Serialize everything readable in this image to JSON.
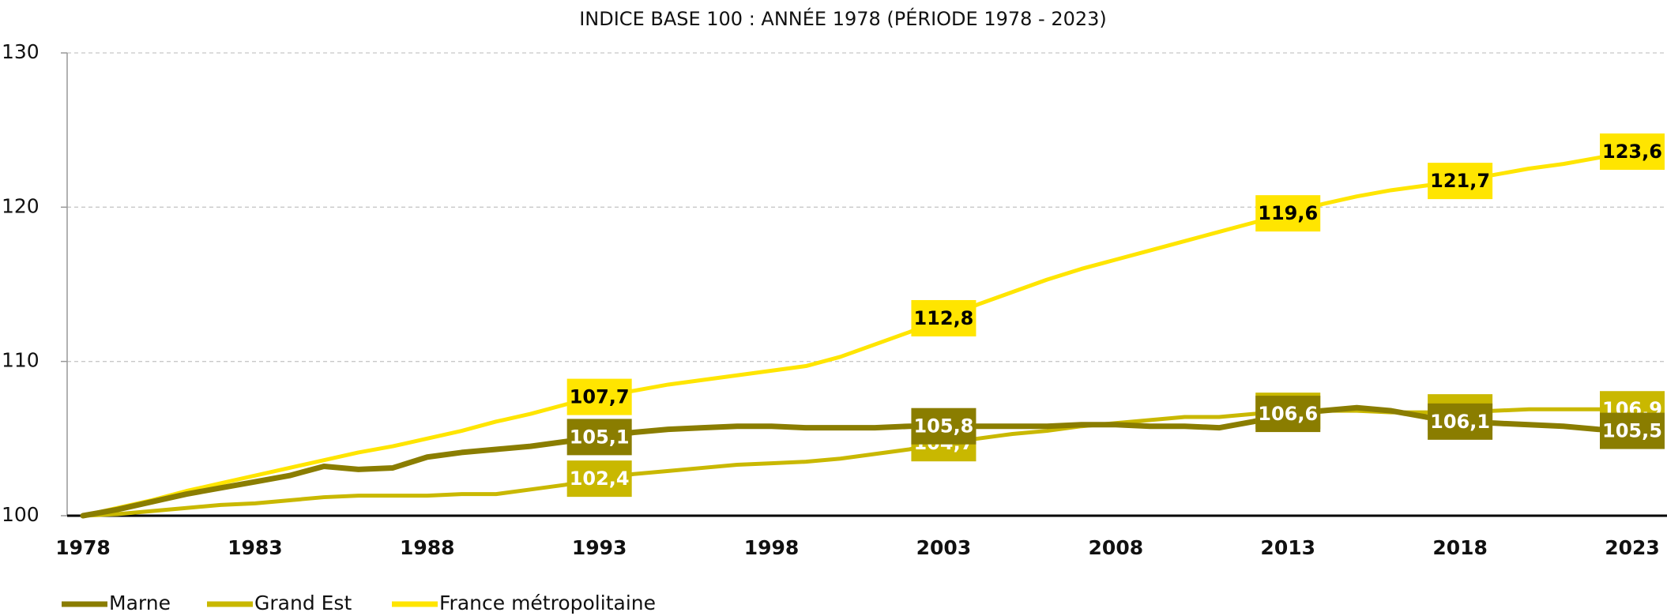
{
  "chart_data": {
    "type": "line",
    "title": "INDICE BASE 100 : ANNÉE 1978 (PÉRIODE 1978 - 2023)",
    "x": [
      1978,
      1979,
      1980,
      1981,
      1982,
      1983,
      1984,
      1985,
      1986,
      1987,
      1988,
      1989,
      1990,
      1991,
      1992,
      1993,
      1994,
      1995,
      1996,
      1997,
      1998,
      1999,
      2000,
      2001,
      2002,
      2003,
      2004,
      2005,
      2006,
      2007,
      2008,
      2009,
      2010,
      2011,
      2012,
      2013,
      2014,
      2015,
      2016,
      2017,
      2018,
      2019,
      2020,
      2021,
      2022,
      2023
    ],
    "xlim": [
      1978,
      2023
    ],
    "xticks": [
      1978,
      1983,
      1988,
      1993,
      1998,
      2003,
      2008,
      2013,
      2018,
      2023
    ],
    "ylim": [
      100,
      130
    ],
    "yticks": [
      100,
      110,
      120,
      130
    ],
    "grid": true,
    "legend": "bottom-left",
    "series": [
      {
        "name": "France métropolitaine",
        "color": "#ffe500",
        "label_text_color": "#000000",
        "values": [
          100,
          100.5,
          101.0,
          101.6,
          102.1,
          102.6,
          103.1,
          103.6,
          104.1,
          104.5,
          105.0,
          105.5,
          106.1,
          106.6,
          107.2,
          107.7,
          108.1,
          108.5,
          108.8,
          109.1,
          109.4,
          109.7,
          110.3,
          111.1,
          111.9,
          112.8,
          113.7,
          114.5,
          115.3,
          116.0,
          116.6,
          117.2,
          117.8,
          118.4,
          119.0,
          119.6,
          120.2,
          120.7,
          121.1,
          121.4,
          121.7,
          122.1,
          122.5,
          122.8,
          123.2,
          123.6
        ],
        "value_labels": [
          null,
          null,
          null,
          null,
          null,
          null,
          null,
          null,
          null,
          null,
          null,
          null,
          null,
          null,
          null,
          "107,7",
          null,
          null,
          null,
          null,
          null,
          null,
          null,
          null,
          null,
          "112,8",
          null,
          null,
          null,
          null,
          null,
          null,
          null,
          null,
          null,
          "119,6",
          null,
          null,
          null,
          null,
          "121,7",
          null,
          null,
          null,
          null,
          "123,6"
        ]
      },
      {
        "name": "Grand Est",
        "color": "#c9b800",
        "label_text_color": "#ffffff",
        "values": [
          100,
          100.1,
          100.3,
          100.5,
          100.7,
          100.8,
          101.0,
          101.2,
          101.3,
          101.3,
          101.3,
          101.4,
          101.4,
          101.7,
          102.0,
          102.4,
          102.7,
          102.9,
          103.1,
          103.3,
          103.4,
          103.5,
          103.7,
          104.0,
          104.3,
          104.7,
          105.0,
          105.3,
          105.5,
          105.8,
          106.0,
          106.2,
          106.4,
          106.4,
          106.6,
          106.8,
          106.8,
          106.8,
          106.7,
          106.7,
          106.7,
          106.8,
          106.9,
          106.9,
          106.9,
          106.9
        ],
        "value_labels": [
          null,
          null,
          null,
          null,
          null,
          null,
          null,
          null,
          null,
          null,
          null,
          null,
          null,
          null,
          null,
          "102,4",
          null,
          null,
          null,
          null,
          null,
          null,
          null,
          null,
          null,
          "104,7",
          null,
          null,
          null,
          null,
          null,
          null,
          null,
          null,
          null,
          "106,8",
          null,
          null,
          null,
          null,
          "106,7",
          null,
          null,
          null,
          null,
          "106,9"
        ]
      },
      {
        "name": "Marne",
        "color": "#8a7d00",
        "label_text_color": "#ffffff",
        "values": [
          100,
          100.4,
          100.9,
          101.4,
          101.8,
          102.2,
          102.6,
          103.2,
          103.0,
          103.1,
          103.8,
          104.1,
          104.3,
          104.5,
          104.8,
          105.1,
          105.4,
          105.6,
          105.7,
          105.8,
          105.8,
          105.7,
          105.7,
          105.7,
          105.8,
          105.8,
          105.8,
          105.8,
          105.8,
          105.9,
          105.9,
          105.8,
          105.8,
          105.7,
          106.1,
          106.6,
          106.8,
          107.0,
          106.8,
          106.4,
          106.1,
          106.0,
          105.9,
          105.8,
          105.6,
          105.5
        ],
        "value_labels": [
          null,
          null,
          null,
          null,
          null,
          null,
          null,
          null,
          null,
          null,
          null,
          null,
          null,
          null,
          null,
          "105,1",
          null,
          null,
          null,
          null,
          null,
          null,
          null,
          null,
          null,
          "105,8",
          null,
          null,
          null,
          null,
          null,
          null,
          null,
          null,
          null,
          "106,6",
          null,
          null,
          null,
          null,
          "106,1",
          null,
          null,
          null,
          null,
          "105,5"
        ]
      }
    ]
  }
}
